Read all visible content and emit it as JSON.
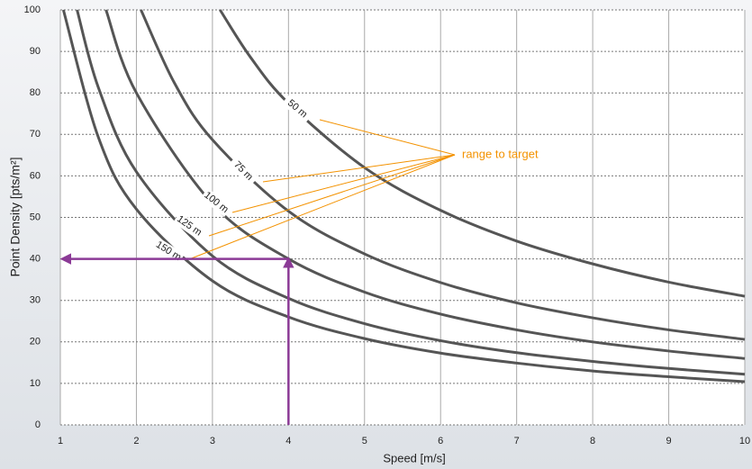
{
  "chart_data": {
    "type": "line",
    "xlabel": "Speed [m/s]",
    "ylabel": "Point Density [pts/m²]",
    "xlim": [
      1,
      10
    ],
    "ylim": [
      0,
      100
    ],
    "xticks": [
      1,
      2,
      3,
      4,
      5,
      6,
      7,
      8,
      9,
      10
    ],
    "yticks": [
      0,
      10,
      20,
      30,
      40,
      50,
      60,
      70,
      80,
      90,
      100
    ],
    "grid": true,
    "series": [
      {
        "name": "50 m",
        "color": "#555555",
        "x": [
          3.1,
          3.5,
          4,
          5,
          6,
          7,
          8,
          9,
          10
        ],
        "values": [
          100,
          88.6,
          77.5,
          62,
          51.7,
          44.3,
          38.8,
          34.4,
          31
        ]
      },
      {
        "name": "75 m",
        "color": "#555555",
        "x": [
          2.06,
          2.5,
          3,
          4,
          5,
          6,
          7,
          8,
          9,
          10
        ],
        "values": [
          100,
          82.4,
          68.7,
          51.5,
          41.2,
          34.3,
          29.4,
          25.8,
          22.9,
          20.6
        ]
      },
      {
        "name": "100 m",
        "color": "#555555",
        "x": [
          1.6,
          2,
          3,
          4,
          5,
          6,
          7,
          8,
          9,
          10
        ],
        "values": [
          100,
          80,
          53.3,
          40,
          32,
          26.7,
          22.9,
          20,
          17.8,
          16
        ]
      },
      {
        "name": "125 m",
        "color": "#555555",
        "x": [
          1.22,
          1.5,
          2,
          3,
          4,
          5,
          6,
          7,
          8,
          9,
          10
        ],
        "values": [
          100,
          81.3,
          61,
          40.7,
          30.5,
          24.4,
          20.3,
          17.4,
          15.3,
          13.6,
          12.2
        ]
      },
      {
        "name": "150 m",
        "color": "#555555",
        "x": [
          1.04,
          1.5,
          2,
          3,
          4,
          5,
          6,
          7,
          8,
          9,
          10
        ],
        "values": [
          100,
          69.3,
          52,
          34.7,
          26,
          20.8,
          17.3,
          14.9,
          13,
          11.6,
          10.4
        ]
      }
    ],
    "annotation": {
      "text": "range to target",
      "color": "#f39200"
    },
    "marker": {
      "x": 4,
      "y": 40,
      "color": "#8b3a96"
    }
  }
}
